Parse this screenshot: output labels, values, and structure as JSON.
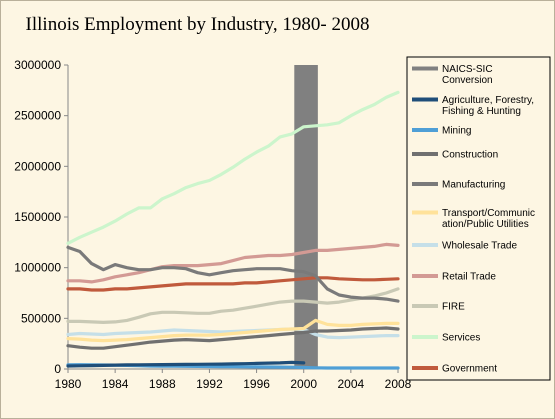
{
  "chart_data": {
    "type": "line",
    "title": "Illinois Employment by Industry, 1980- 2008",
    "xlabel": "",
    "ylabel": "",
    "xlim": [
      1980,
      2008
    ],
    "ylim": [
      0,
      3000000
    ],
    "x_ticks": [
      1980,
      1984,
      1988,
      1992,
      1996,
      2000,
      2004,
      2008
    ],
    "y_ticks": [
      0,
      500000,
      1000000,
      1500000,
      2000000,
      2500000,
      3000000
    ],
    "y_tick_labels": [
      "0",
      "500000",
      "1000000",
      "1500000",
      "2000000",
      "2500000",
      "3000000"
    ],
    "grid": false,
    "legend_position": "right",
    "shaded_band": {
      "series": "NAICS-SIC Conversion",
      "x_start": 1999.2,
      "x_end": 2001.2
    },
    "series": [
      {
        "name": "NAICS-SIC Conversion",
        "type": "band",
        "color": "#808080",
        "x": [],
        "values": []
      },
      {
        "name": "Agriculture, Forestry, Fishing & Hunting",
        "color": "#1f4e79",
        "x": [
          1980,
          1981,
          1982,
          1983,
          1984,
          1985,
          1986,
          1987,
          1988,
          1989,
          1990,
          1991,
          1992,
          1993,
          1994,
          1995,
          1996,
          1997,
          1998,
          1999,
          2000
        ],
        "values": [
          30000,
          32000,
          34000,
          36000,
          38000,
          40000,
          41000,
          42000,
          43000,
          44000,
          45000,
          46000,
          47000,
          48000,
          50000,
          52000,
          55000,
          58000,
          60000,
          65000,
          60000
        ]
      },
      {
        "name": "Mining",
        "color": "#4f9fd6",
        "x": [
          1980,
          1981,
          1982,
          1983,
          1984,
          1985,
          1986,
          1987,
          1988,
          1989,
          1990,
          1991,
          1992,
          1993,
          1994,
          1995,
          1996,
          1997,
          1998,
          1999,
          2000,
          2001,
          2002,
          2003,
          2004,
          2005,
          2006,
          2007,
          2008
        ],
        "values": [
          40000,
          42000,
          41000,
          39000,
          38000,
          36000,
          33000,
          30000,
          29000,
          28000,
          27000,
          26000,
          25000,
          24000,
          23000,
          22000,
          21000,
          20000,
          19000,
          18000,
          15000,
          12000,
          10000,
          10000,
          10000,
          10000,
          10000,
          10000,
          10000
        ]
      },
      {
        "name": "Construction",
        "color": "#707070",
        "x": [
          1980,
          1981,
          1982,
          1983,
          1984,
          1985,
          1986,
          1987,
          1988,
          1989,
          1990,
          1991,
          1992,
          1993,
          1994,
          1995,
          1996,
          1997,
          1998,
          1999,
          2000,
          2001,
          2002,
          2003,
          2004,
          2005,
          2006,
          2007,
          2008
        ],
        "values": [
          230000,
          215000,
          205000,
          205000,
          220000,
          235000,
          250000,
          265000,
          275000,
          285000,
          290000,
          285000,
          280000,
          290000,
          300000,
          310000,
          320000,
          330000,
          340000,
          350000,
          360000,
          375000,
          375000,
          380000,
          385000,
          395000,
          400000,
          405000,
          395000
        ]
      },
      {
        "name": "Manufacturing",
        "color": "#7a7a7a",
        "x": [
          1980,
          1981,
          1982,
          1983,
          1984,
          1985,
          1986,
          1987,
          1988,
          1989,
          1990,
          1991,
          1992,
          1993,
          1994,
          1995,
          1996,
          1997,
          1998,
          1999,
          2000,
          2001,
          2002,
          2003,
          2004,
          2005,
          2006,
          2007,
          2008
        ],
        "values": [
          1200000,
          1160000,
          1040000,
          980000,
          1030000,
          1000000,
          980000,
          980000,
          1000000,
          1000000,
          990000,
          950000,
          930000,
          950000,
          970000,
          980000,
          990000,
          990000,
          990000,
          970000,
          960000,
          920000,
          790000,
          730000,
          710000,
          700000,
          700000,
          690000,
          670000
        ]
      },
      {
        "name": "Transport/Communication/Public Utilities",
        "color": "#ffe29a",
        "x": [
          1980,
          1981,
          1982,
          1983,
          1984,
          1985,
          1986,
          1987,
          1988,
          1989,
          1990,
          1991,
          1992,
          1993,
          1994,
          1995,
          1996,
          1997,
          1998,
          1999,
          2000,
          2001,
          2002,
          2003,
          2004,
          2005,
          2006,
          2007,
          2008
        ],
        "values": [
          300000,
          295000,
          285000,
          280000,
          285000,
          290000,
          300000,
          310000,
          320000,
          330000,
          335000,
          335000,
          335000,
          340000,
          350000,
          360000,
          370000,
          380000,
          390000,
          395000,
          400000,
          480000,
          440000,
          430000,
          430000,
          440000,
          445000,
          450000,
          450000
        ]
      },
      {
        "name": "Wholesale Trade",
        "color": "#c5dfe8",
        "x": [
          1980,
          1981,
          1982,
          1983,
          1984,
          1985,
          1986,
          1987,
          1988,
          1989,
          1990,
          1991,
          1992,
          1993,
          1994,
          1995,
          1996,
          1997,
          1998,
          1999,
          2000,
          2001,
          2002,
          2003,
          2004,
          2005,
          2006,
          2007,
          2008
        ],
        "values": [
          340000,
          350000,
          345000,
          340000,
          350000,
          355000,
          360000,
          365000,
          375000,
          385000,
          380000,
          375000,
          370000,
          365000,
          370000,
          375000,
          380000,
          385000,
          390000,
          395000,
          390000,
          340000,
          315000,
          310000,
          315000,
          320000,
          325000,
          330000,
          330000
        ]
      },
      {
        "name": "Retail Trade",
        "color": "#d39a94",
        "x": [
          1980,
          1981,
          1982,
          1983,
          1984,
          1985,
          1986,
          1987,
          1988,
          1989,
          1990,
          1991,
          1992,
          1993,
          1994,
          1995,
          1996,
          1997,
          1998,
          1999,
          2000,
          2001,
          2002,
          2003,
          2004,
          2005,
          2006,
          2007,
          2008
        ],
        "values": [
          870000,
          870000,
          860000,
          880000,
          910000,
          930000,
          950000,
          980000,
          1010000,
          1020000,
          1020000,
          1020000,
          1030000,
          1040000,
          1070000,
          1100000,
          1110000,
          1120000,
          1120000,
          1130000,
          1150000,
          1170000,
          1170000,
          1180000,
          1190000,
          1200000,
          1210000,
          1230000,
          1220000
        ]
      },
      {
        "name": "FIRE",
        "color": "#c9c9b5",
        "x": [
          1980,
          1981,
          1982,
          1983,
          1984,
          1985,
          1986,
          1987,
          1988,
          1989,
          1990,
          1991,
          1992,
          1993,
          1994,
          1995,
          1996,
          1997,
          1998,
          1999,
          2000,
          2001,
          2002,
          2003,
          2004,
          2005,
          2006,
          2007,
          2008
        ],
        "values": [
          470000,
          470000,
          465000,
          460000,
          465000,
          480000,
          510000,
          545000,
          560000,
          560000,
          555000,
          550000,
          550000,
          570000,
          580000,
          600000,
          620000,
          640000,
          660000,
          670000,
          670000,
          660000,
          650000,
          660000,
          680000,
          700000,
          720000,
          750000,
          790000
        ]
      },
      {
        "name": "Services",
        "color": "#ccf5cc",
        "x": [
          1980,
          1981,
          1982,
          1983,
          1984,
          1985,
          1986,
          1987,
          1988,
          1989,
          1990,
          1991,
          1992,
          1993,
          1994,
          1995,
          1996,
          1997,
          1998,
          1999,
          2000,
          2001,
          2002,
          2003,
          2004,
          2005,
          2006,
          2007,
          2008
        ],
        "values": [
          1240000,
          1300000,
          1350000,
          1400000,
          1460000,
          1530000,
          1590000,
          1590000,
          1680000,
          1730000,
          1790000,
          1830000,
          1860000,
          1920000,
          1990000,
          2070000,
          2140000,
          2200000,
          2290000,
          2320000,
          2390000,
          2400000,
          2410000,
          2430000,
          2500000,
          2560000,
          2610000,
          2680000,
          2730000
        ]
      },
      {
        "name": "Government",
        "color": "#c05a3c",
        "x": [
          1980,
          1981,
          1982,
          1983,
          1984,
          1985,
          1986,
          1987,
          1988,
          1989,
          1990,
          1991,
          1992,
          1993,
          1994,
          1995,
          1996,
          1997,
          1998,
          1999,
          2000,
          2001,
          2002,
          2003,
          2004,
          2005,
          2006,
          2007,
          2008
        ],
        "values": [
          790000,
          790000,
          780000,
          780000,
          790000,
          790000,
          800000,
          810000,
          820000,
          830000,
          840000,
          840000,
          840000,
          840000,
          840000,
          850000,
          850000,
          860000,
          870000,
          880000,
          890000,
          900000,
          900000,
          890000,
          885000,
          880000,
          880000,
          885000,
          890000
        ]
      }
    ]
  },
  "legend": {
    "labels": [
      [
        "NAICS-SIC",
        "Conversion"
      ],
      [
        "Agriculture, Forestry,",
        "Fishing & Hunting"
      ],
      [
        "Mining"
      ],
      [
        "Construction"
      ],
      [
        "Manufacturing"
      ],
      [
        "Transport/Communic",
        "ation/Public Utilities"
      ],
      [
        "Wholesale Trade"
      ],
      [
        "Retail Trade"
      ],
      [
        "FIRE"
      ],
      [
        "Services"
      ],
      [
        "Government"
      ]
    ]
  }
}
